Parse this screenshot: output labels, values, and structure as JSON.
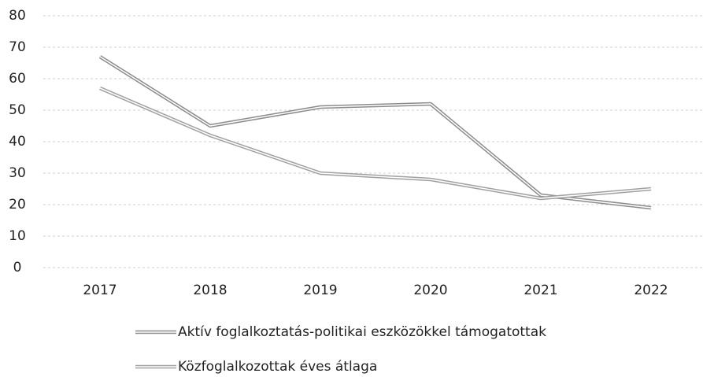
{
  "chart_data": {
    "type": "line",
    "categories": [
      "2017",
      "2018",
      "2019",
      "2020",
      "2021",
      "2022"
    ],
    "series": [
      {
        "name": "Aktív foglalkoztatás-politikai eszközökkel támogatottak",
        "color": "#8c8c8c",
        "values": [
          67,
          45,
          51,
          52,
          23,
          19
        ]
      },
      {
        "name": "Közfoglalkozottak éves átlaga",
        "color": "#a0a0a0",
        "values": [
          57,
          42,
          30,
          28,
          22,
          25
        ]
      }
    ],
    "ylim": [
      0,
      80
    ],
    "yticks": [
      0,
      10,
      20,
      30,
      40,
      50,
      60,
      70,
      80
    ],
    "grid": true,
    "legend": "bottom"
  }
}
